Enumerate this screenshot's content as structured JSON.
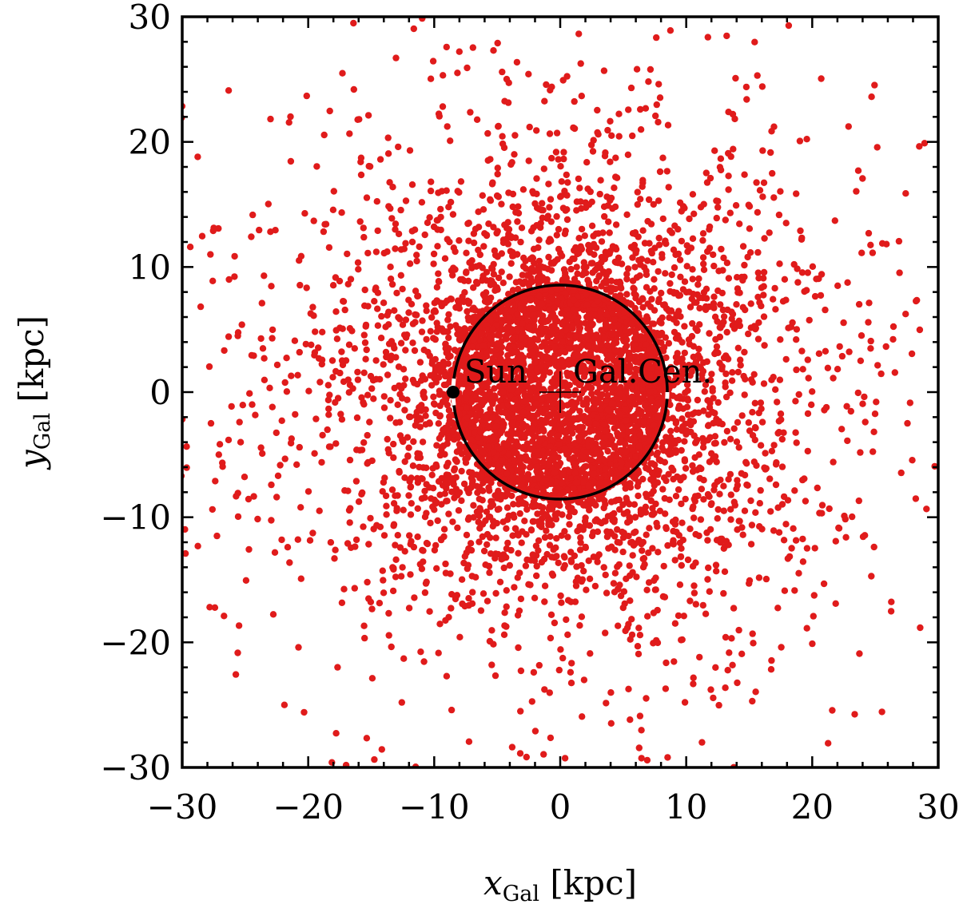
{
  "chart_data": {
    "type": "scatter",
    "title": "",
    "xlabel_main": "x",
    "xlabel_sub": "Gal",
    "xlabel_unit": " [kpc]",
    "ylabel_main": "y",
    "ylabel_sub": "Gal",
    "ylabel_unit": " [kpc]",
    "xlim": [
      -30,
      30
    ],
    "ylim": [
      -30,
      30
    ],
    "xticks": [
      -30,
      -20,
      -10,
      0,
      10,
      20,
      30
    ],
    "yticks": [
      -30,
      -20,
      -10,
      0,
      10,
      20,
      30
    ],
    "xtick_labels": [
      "−30",
      "−20",
      "−10",
      "0",
      "10",
      "20",
      "30"
    ],
    "ytick_labels": [
      "−30",
      "−20",
      "−10",
      "0",
      "10",
      "20",
      "30"
    ],
    "grid": false,
    "series": [
      {
        "marker_color": "#e01b1b",
        "n_points": 6000,
        "distribution": "centrally concentrated radial distribution around the Galactic Center, dense core within ~8.5 kpc"
      }
    ],
    "solar_circle": {
      "center": [
        0,
        0
      ],
      "radius": 8.5,
      "color": "#000000"
    },
    "annotations": [
      {
        "label": "Sun",
        "marker": "filled-circle",
        "x": -8.5,
        "y": 0
      },
      {
        "label": "Gal.Cen.",
        "marker": "plus",
        "x": 0,
        "y": 0
      }
    ]
  }
}
